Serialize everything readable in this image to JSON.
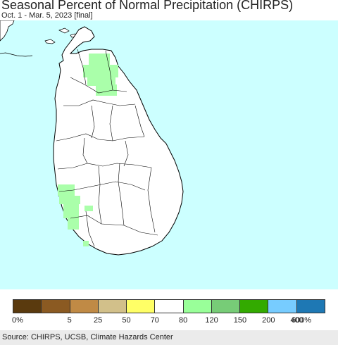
{
  "title": "Seasonal Percent of Normal Precipitation (CHIRPS)",
  "subtitle": "Oct. 1 - Mar. 5, 2023 [final]",
  "colors": {
    "ocean": "#ccffff",
    "land": "#ffffff",
    "wet_120_150": "#aaffaa",
    "boundary": "#000000"
  },
  "legend": {
    "colors": [
      "#5a3a0e",
      "#8b5a22",
      "#c08a45",
      "#d2c08a",
      "#ffff66",
      "#ffffff",
      "#99ff99",
      "#77cc77",
      "#33aa00",
      "#77ccff",
      "#1e78b4"
    ],
    "labels": [
      "0%",
      "5",
      "25",
      "50",
      "70",
      "80",
      "120",
      "150",
      "200",
      "400",
      "600%"
    ]
  },
  "source": "Source: CHIRPS, UCSB, Climate Hazards Center"
}
